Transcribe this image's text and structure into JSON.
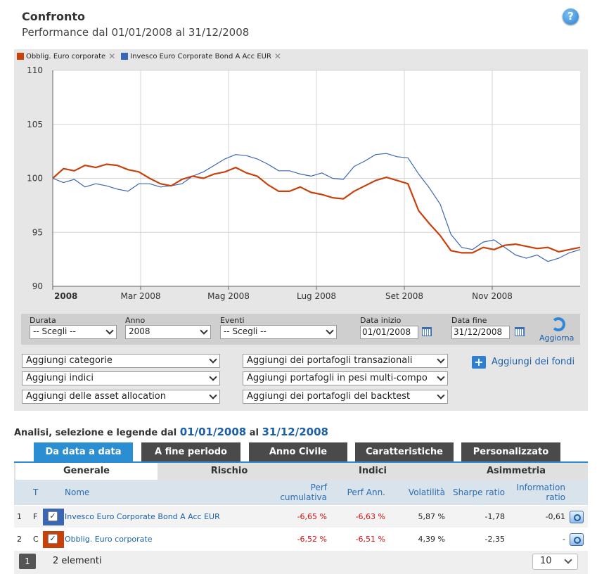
{
  "header": {
    "title": "Confronto",
    "subtitle": "Performance dal 01/01/2008 al 31/12/2008",
    "help_icon": "question-icon"
  },
  "legend": [
    {
      "name": "Obblig. Euro corporate",
      "color": "#c8400a"
    },
    {
      "name": "Invesco Euro Corporate Bond A Acc EUR",
      "color": "#3a67b5"
    }
  ],
  "chart_data": {
    "type": "line",
    "ylim": [
      90,
      110
    ],
    "yticks": [
      "110",
      "105",
      "100",
      "95",
      "90"
    ],
    "xticks": [
      "2008",
      "Mar 2008",
      "Mag 2008",
      "Lug 2008",
      "Set 2008",
      "Nov 2008"
    ],
    "grid": true,
    "series": [
      {
        "name": "Obblig. Euro corporate",
        "color": "#c8400a",
        "values": [
          100.0,
          100.9,
          100.7,
          101.2,
          101.0,
          101.3,
          101.2,
          100.8,
          100.6,
          100.0,
          99.5,
          99.3,
          99.9,
          100.2,
          100.0,
          100.4,
          100.6,
          101.0,
          100.5,
          100.2,
          99.4,
          98.8,
          98.8,
          99.2,
          98.7,
          98.5,
          98.2,
          98.1,
          98.8,
          99.3,
          99.8,
          100.1,
          99.8,
          99.5,
          97.0,
          95.8,
          94.7,
          93.3,
          93.1,
          93.1,
          93.6,
          93.4,
          93.8,
          93.9,
          93.7,
          93.5,
          93.6,
          93.2,
          93.4,
          93.6
        ]
      },
      {
        "name": "Invesco Euro Corporate Bond A Acc EUR",
        "color": "#3a67b5",
        "values": [
          100.0,
          99.6,
          99.9,
          99.2,
          99.5,
          99.3,
          99.0,
          98.8,
          99.5,
          99.5,
          99.2,
          99.3,
          99.5,
          100.2,
          100.6,
          101.2,
          101.8,
          102.2,
          102.1,
          101.8,
          101.3,
          100.7,
          100.7,
          100.4,
          100.2,
          100.5,
          100.0,
          99.9,
          101.1,
          101.6,
          102.2,
          102.3,
          102.0,
          101.9,
          100.4,
          99.1,
          97.6,
          94.8,
          93.6,
          93.4,
          94.1,
          94.3,
          93.6,
          92.9,
          92.6,
          92.9,
          92.3,
          92.6,
          93.1,
          93.4
        ]
      }
    ]
  },
  "filters": {
    "durata_label": "Durata",
    "durata_value": "-- Scegli --",
    "anno_label": "Anno",
    "anno_value": "2008",
    "eventi_label": "Eventi",
    "eventi_value": "-- Scegli --",
    "data_inizio_label": "Data inizio",
    "data_inizio_value": "01/01/2008",
    "data_fine_label": "Data fine",
    "data_fine_value": "31/12/2008",
    "aggiorna_label": "Aggiorna"
  },
  "add_dropdowns": {
    "categorie": "Aggiungi categorie",
    "indici": "Aggiungi indici",
    "asset_allocation": "Aggiungi delle asset allocation",
    "transazionali": "Aggiungi dei portafogli transazionali",
    "multi_compo": "Aggiungi portafogli in pesi multi-compo",
    "backtest": "Aggiungi dei portafogli del backtest",
    "add_funds": "Aggiungi dei fondi"
  },
  "analysis": {
    "prefix": "Analisi, selezione e legende dal",
    "from": "01/01/2008",
    "mid": "al",
    "to": "31/12/2008"
  },
  "tabs": [
    "Da data a data",
    "A fine periodo",
    "Anno Civile",
    "Caratteristiche",
    "Personalizzato"
  ],
  "subtabs": [
    "Generale",
    "Rischio",
    "Indici",
    "Asimmetria"
  ],
  "table": {
    "headers": {
      "t": "T",
      "nome": "Nome",
      "perf_cum_1": "Perf",
      "perf_cum_2": "cumulativa",
      "perf_ann": "Perf Ann.",
      "vol": "Volatilità",
      "sharpe": "Sharpe ratio",
      "info_1": "Information",
      "info_2": "ratio"
    },
    "rows": [
      {
        "idx": "1",
        "t": "F",
        "nome": "Invesco Euro Corporate Bond A Acc EUR",
        "perf_cum": "-6,65 %",
        "perf_ann": "-6,63 %",
        "vol": "5,87 %",
        "sharpe": "-1,78",
        "info": "-0,61",
        "color": "#3a67b5"
      },
      {
        "idx": "2",
        "t": "C",
        "nome": "Obblig. Euro corporate",
        "perf_cum": "-6,52 %",
        "perf_ann": "-6,51 %",
        "vol": "4,39 %",
        "sharpe": "-2,35",
        "info": "-",
        "color": "#c8400a"
      }
    ]
  },
  "pager": {
    "page": "1",
    "count": "2 elementi",
    "page_size": "10"
  }
}
